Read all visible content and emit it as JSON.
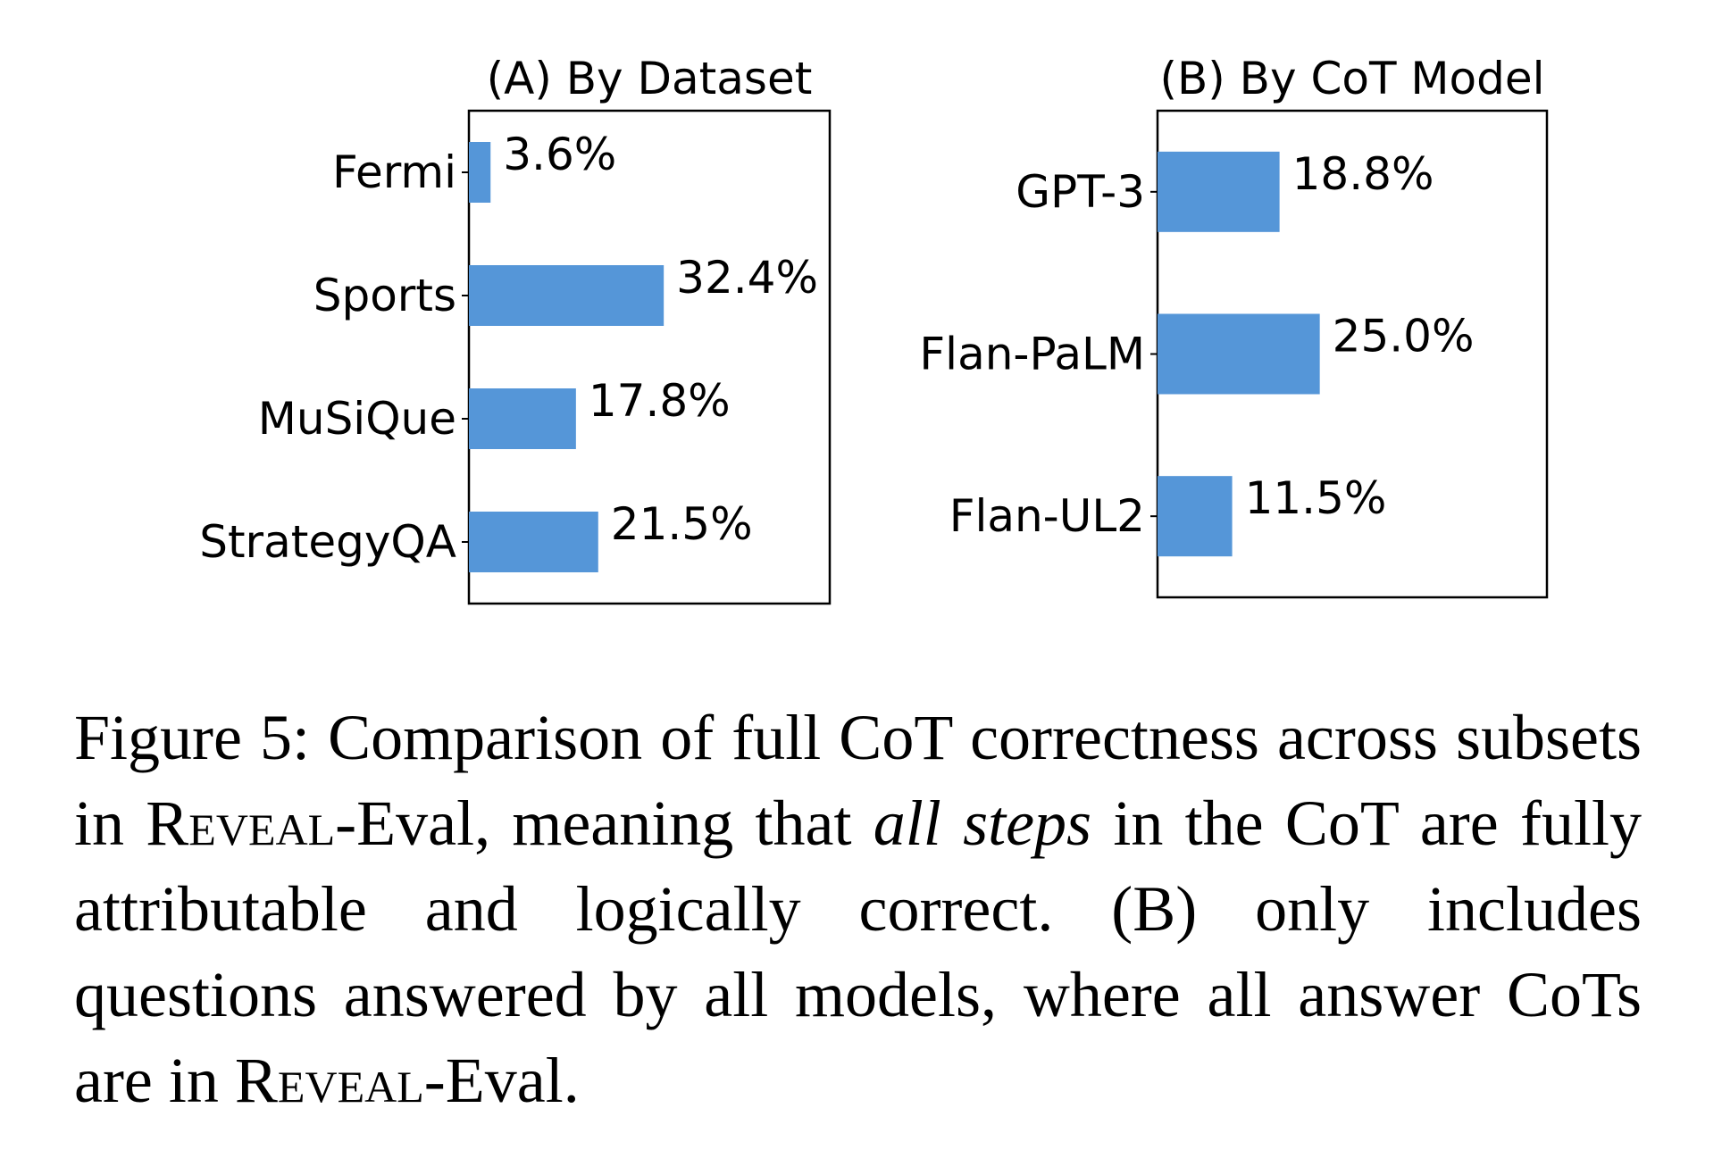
{
  "chart_data": [
    {
      "type": "bar",
      "orientation": "horizontal",
      "title": "(A) By Dataset",
      "categories": [
        "Fermi",
        "Sports",
        "MuSiQue",
        "StrategyQA"
      ],
      "values": [
        3.6,
        32.4,
        17.8,
        21.5
      ],
      "value_labels": [
        "3.6%",
        "32.4%",
        "17.8%",
        "21.5%"
      ],
      "unit": "%",
      "xlim": [
        0,
        60
      ],
      "color": "#5596d8",
      "grid": false
    },
    {
      "type": "bar",
      "orientation": "horizontal",
      "title": "(B) By CoT Model",
      "categories": [
        "GPT-3",
        "Flan-PaLM",
        "Flan-UL2"
      ],
      "values": [
        18.8,
        25.0,
        11.5
      ],
      "value_labels": [
        "18.8%",
        "25.0%",
        "11.5%"
      ],
      "unit": "%",
      "xlim": [
        0,
        60
      ],
      "color": "#5596d8",
      "grid": false
    }
  ],
  "caption": {
    "part1": "Figure 5: Comparison of full CoT correctness across subsets in ",
    "reveal1": "Reveal",
    "part2": "-Eval, meaning that ",
    "italic": "all steps",
    "part3": " in the CoT are fully attributable and logically correct. (B) only includes questions answered by all models, where all answer CoTs are in ",
    "reveal2": "Reveal",
    "part4": "-Eval."
  }
}
